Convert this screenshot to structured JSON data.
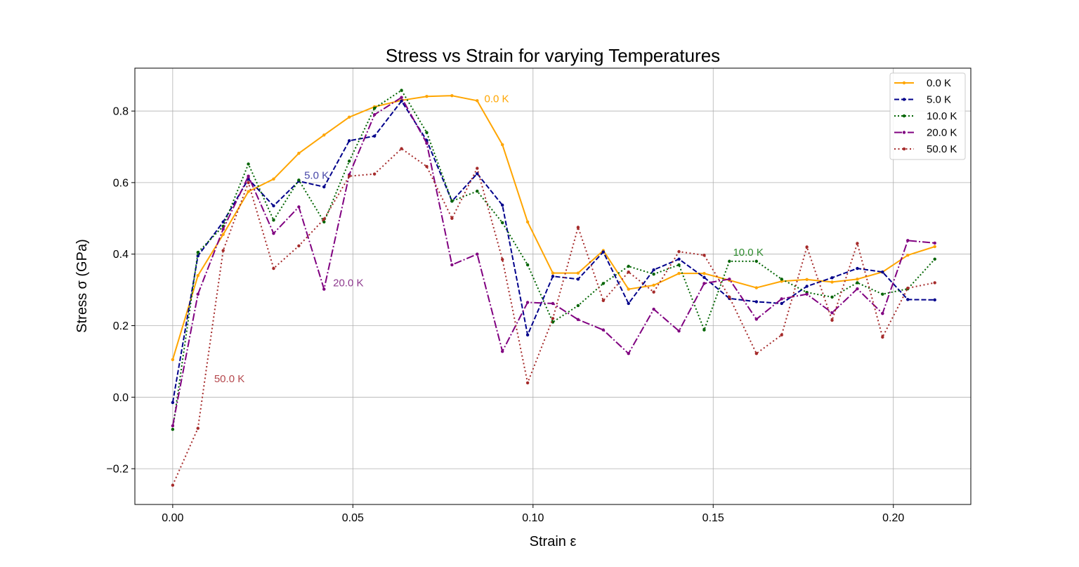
{
  "chart_data": {
    "type": "line",
    "title": "Stress vs Strain for varying Temperatures",
    "xlabel": "Strain ε",
    "ylabel": "Stress σ (GPa)",
    "xlim": [
      -0.0105,
      0.2215
    ],
    "ylim": [
      -0.3,
      0.92
    ],
    "xticks": [
      0.0,
      0.05,
      0.1,
      0.15,
      0.2
    ],
    "xtick_labels": [
      "0.00",
      "0.05",
      "0.10",
      "0.15",
      "0.20"
    ],
    "yticks": [
      -0.2,
      0.0,
      0.2,
      0.4,
      0.6,
      0.8
    ],
    "ytick_labels": [
      "−0.2",
      "0.0",
      "0.2",
      "0.4",
      "0.6",
      "0.8"
    ],
    "grid": true,
    "legend_position": "top-right",
    "x": [
      0.0,
      0.007,
      0.014,
      0.021,
      0.028,
      0.035,
      0.042,
      0.049,
      0.056,
      0.0635,
      0.0705,
      0.0775,
      0.0845,
      0.0915,
      0.0985,
      0.1055,
      0.1125,
      0.1195,
      0.1265,
      0.1335,
      0.1405,
      0.1475,
      0.1545,
      0.162,
      0.169,
      0.176,
      0.183,
      0.19,
      0.197,
      0.204,
      0.2115
    ],
    "series": [
      {
        "name": "0.0 K",
        "color": "#FFA500",
        "dash": "solid",
        "values": [
          0.105,
          0.34,
          0.455,
          0.575,
          0.61,
          0.682,
          0.733,
          0.783,
          0.812,
          0.83,
          0.841,
          0.843,
          0.829,
          0.706,
          0.49,
          0.347,
          0.347,
          0.41,
          0.302,
          0.313,
          0.346,
          0.346,
          0.327,
          0.306,
          0.324,
          0.329,
          0.322,
          0.33,
          0.35,
          0.397,
          0.421
        ]
      },
      {
        "name": "5.0 K",
        "color": "#00008B",
        "dash": "dashed",
        "values": [
          -0.015,
          0.395,
          0.49,
          0.61,
          0.535,
          0.604,
          0.588,
          0.717,
          0.73,
          0.828,
          0.718,
          0.548,
          0.625,
          0.537,
          0.174,
          0.338,
          0.33,
          0.406,
          0.262,
          0.356,
          0.386,
          0.335,
          0.276,
          0.267,
          0.262,
          0.31,
          0.334,
          0.36,
          0.35,
          0.273,
          0.272
        ]
      },
      {
        "name": "10.0 K",
        "color": "#006400",
        "dash": "dotted",
        "values": [
          -0.09,
          0.405,
          0.478,
          0.652,
          0.495,
          0.607,
          0.49,
          0.66,
          0.808,
          0.858,
          0.74,
          0.548,
          0.576,
          0.488,
          0.37,
          0.21,
          0.256,
          0.318,
          0.366,
          0.344,
          0.37,
          0.188,
          0.38,
          0.38,
          0.33,
          0.293,
          0.28,
          0.32,
          0.288,
          0.303,
          0.386
        ]
      },
      {
        "name": "20.0 K",
        "color": "#800080",
        "dash": "dashdot",
        "values": [
          -0.08,
          0.288,
          0.47,
          0.618,
          0.458,
          0.532,
          0.302,
          0.622,
          0.79,
          0.838,
          0.71,
          0.37,
          0.4,
          0.128,
          0.265,
          0.262,
          0.217,
          0.188,
          0.122,
          0.246,
          0.185,
          0.318,
          0.33,
          0.218,
          0.275,
          0.288,
          0.236,
          0.303,
          0.234,
          0.438,
          0.431
        ]
      },
      {
        "name": "50.0 K",
        "color": "#A52A2A",
        "dash": "loosedot",
        "values": [
          -0.246,
          -0.087,
          0.41,
          0.6,
          0.36,
          0.423,
          0.498,
          0.618,
          0.624,
          0.695,
          0.645,
          0.5,
          0.64,
          0.385,
          0.04,
          0.22,
          0.475,
          0.27,
          0.35,
          0.294,
          0.407,
          0.397,
          0.28,
          0.122,
          0.174,
          0.42,
          0.215,
          0.43,
          0.168,
          0.305,
          0.32
        ]
      }
    ],
    "annotations": [
      {
        "text": "0.0 K",
        "x": 0.0865,
        "y": 0.835,
        "color": "#FFA500"
      },
      {
        "text": "5.0 K",
        "x": 0.0365,
        "y": 0.62,
        "color": "#4848A8"
      },
      {
        "text": "10.0 K",
        "x": 0.1555,
        "y": 0.405,
        "color": "#2E8B2E"
      },
      {
        "text": "20.0 K",
        "x": 0.0445,
        "y": 0.32,
        "color": "#8E3A8E"
      },
      {
        "text": "50.0 K",
        "x": 0.0115,
        "y": 0.052,
        "color": "#B5484D"
      }
    ]
  }
}
